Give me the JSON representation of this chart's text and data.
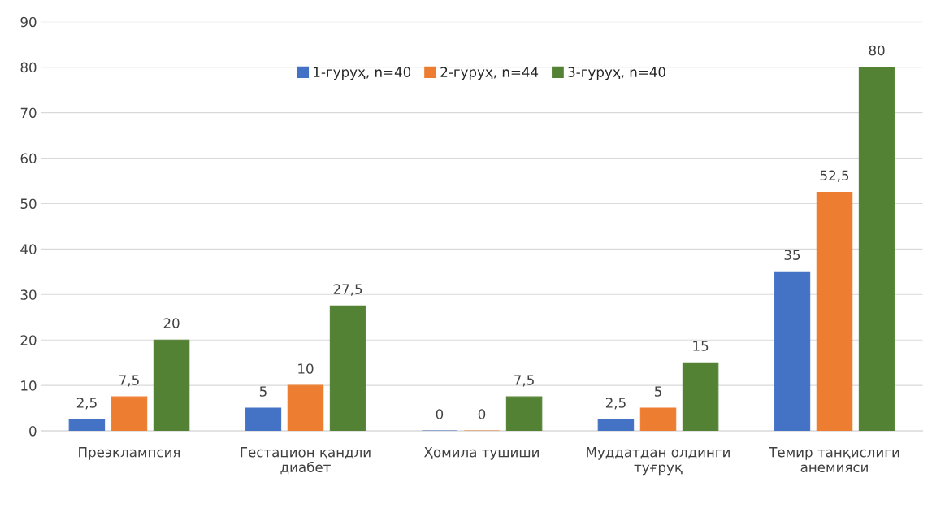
{
  "chart_data": {
    "type": "bar",
    "categories": [
      "Преэклампсия",
      "Гестацион қандли\nдиабет",
      "Ҳомила тушиши",
      "Муддатдан олдинги\nтуғруқ",
      "Темир танқислиги\nанемияси"
    ],
    "series": [
      {
        "name": "1-гуруҳ, n=40",
        "color": "#4472c4",
        "values": [
          2.5,
          5,
          0,
          2.5,
          35
        ],
        "value_labels": [
          "2,5",
          "5",
          "0",
          "2,5",
          "35"
        ]
      },
      {
        "name": "2-гуруҳ, n=44",
        "color": "#ed7d31",
        "values": [
          7.5,
          10,
          0,
          5,
          52.5
        ],
        "value_labels": [
          "7,5",
          "10",
          "0",
          "5",
          "52,5"
        ]
      },
      {
        "name": "3-гуруҳ, n=40",
        "color": "#548235",
        "values": [
          20,
          27.5,
          7.5,
          15,
          80
        ],
        "value_labels": [
          "20",
          "27,5",
          "7,5",
          "15",
          "80"
        ]
      }
    ],
    "ylim": [
      0,
      90
    ],
    "yticks": [
      0,
      10,
      20,
      30,
      40,
      50,
      60,
      70,
      80,
      90
    ],
    "grid": "y",
    "legend": "top"
  }
}
